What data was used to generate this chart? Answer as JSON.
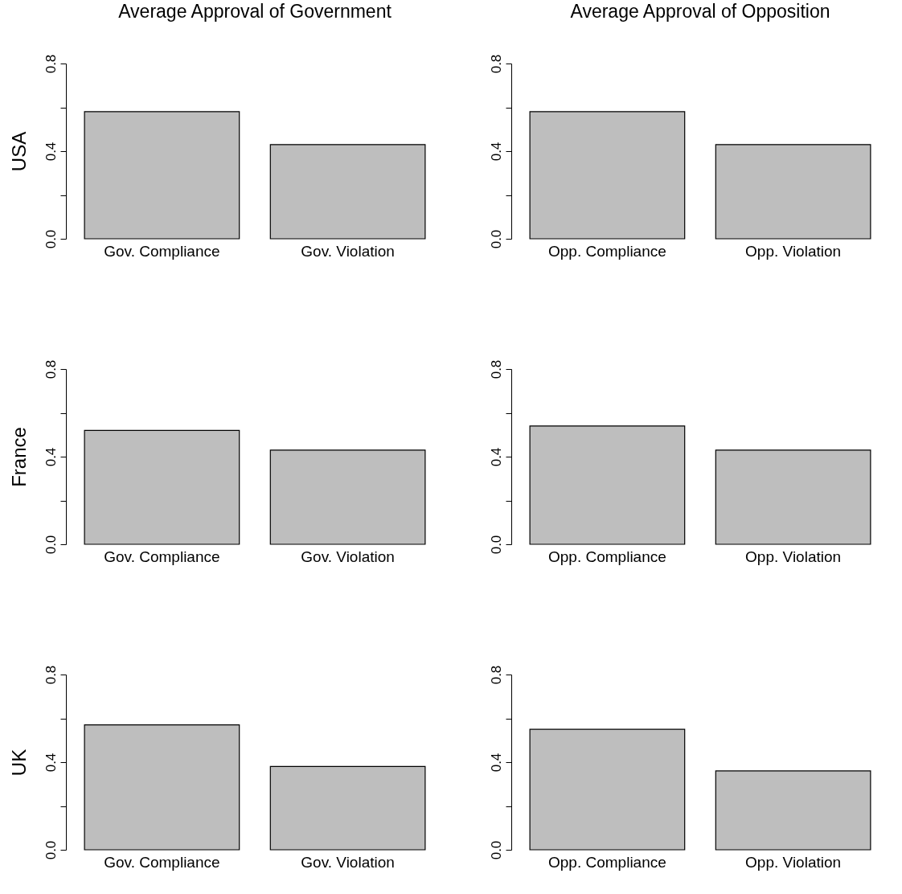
{
  "chart_data": [
    {
      "type": "bar",
      "title": "Average Approval of Government",
      "ylabel": "USA",
      "categories": [
        "Gov. Compliance",
        "Gov. Violation"
      ],
      "values": [
        0.58,
        0.43
      ],
      "color": "#bebebe",
      "ylim": [
        0,
        0.8
      ],
      "yticks": [
        {
          "value": 0,
          "label": "0.0"
        },
        {
          "value": 0.2,
          "label": null
        },
        {
          "value": 0.4,
          "label": "0.4"
        },
        {
          "value": 0.6,
          "label": null
        },
        {
          "value": 0.8,
          "label": "0.8"
        }
      ],
      "grid": false
    },
    {
      "type": "bar",
      "title": "Average Approval of Opposition",
      "categories": [
        "Opp. Compliance",
        "Opp. Violation"
      ],
      "values": [
        0.58,
        0.43
      ],
      "color": "#bebebe",
      "ylim": [
        0,
        0.8
      ],
      "yticks": [
        {
          "value": 0,
          "label": "0.0"
        },
        {
          "value": 0.2,
          "label": null
        },
        {
          "value": 0.4,
          "label": "0.4"
        },
        {
          "value": 0.6,
          "label": null
        },
        {
          "value": 0.8,
          "label": "0.8"
        }
      ],
      "grid": false
    },
    {
      "type": "bar",
      "ylabel": "France",
      "categories": [
        "Gov. Compliance",
        "Gov. Violation"
      ],
      "values": [
        0.52,
        0.43
      ],
      "color": "#bebebe",
      "ylim": [
        0,
        0.8
      ],
      "yticks": [
        {
          "value": 0,
          "label": "0.0"
        },
        {
          "value": 0.2,
          "label": null
        },
        {
          "value": 0.4,
          "label": "0.4"
        },
        {
          "value": 0.6,
          "label": null
        },
        {
          "value": 0.8,
          "label": "0.8"
        }
      ],
      "grid": false
    },
    {
      "type": "bar",
      "categories": [
        "Opp. Compliance",
        "Opp. Violation"
      ],
      "values": [
        0.54,
        0.43
      ],
      "color": "#bebebe",
      "ylim": [
        0,
        0.8
      ],
      "yticks": [
        {
          "value": 0,
          "label": "0.0"
        },
        {
          "value": 0.2,
          "label": null
        },
        {
          "value": 0.4,
          "label": "0.4"
        },
        {
          "value": 0.6,
          "label": null
        },
        {
          "value": 0.8,
          "label": "0.8"
        }
      ],
      "grid": false
    },
    {
      "type": "bar",
      "ylabel": "UK",
      "categories": [
        "Gov. Compliance",
        "Gov. Violation"
      ],
      "values": [
        0.57,
        0.38
      ],
      "color": "#bebebe",
      "ylim": [
        0,
        0.8
      ],
      "yticks": [
        {
          "value": 0,
          "label": "0.0"
        },
        {
          "value": 0.2,
          "label": null
        },
        {
          "value": 0.4,
          "label": "0.4"
        },
        {
          "value": 0.6,
          "label": null
        },
        {
          "value": 0.8,
          "label": "0.8"
        }
      ],
      "grid": false
    },
    {
      "type": "bar",
      "categories": [
        "Opp. Compliance",
        "Opp. Violation"
      ],
      "values": [
        0.55,
        0.36
      ],
      "color": "#bebebe",
      "ylim": [
        0,
        0.8
      ],
      "yticks": [
        {
          "value": 0,
          "label": "0.0"
        },
        {
          "value": 0.2,
          "label": null
        },
        {
          "value": 0.4,
          "label": "0.4"
        },
        {
          "value": 0.6,
          "label": null
        },
        {
          "value": 0.8,
          "label": "0.8"
        }
      ],
      "grid": false
    }
  ]
}
